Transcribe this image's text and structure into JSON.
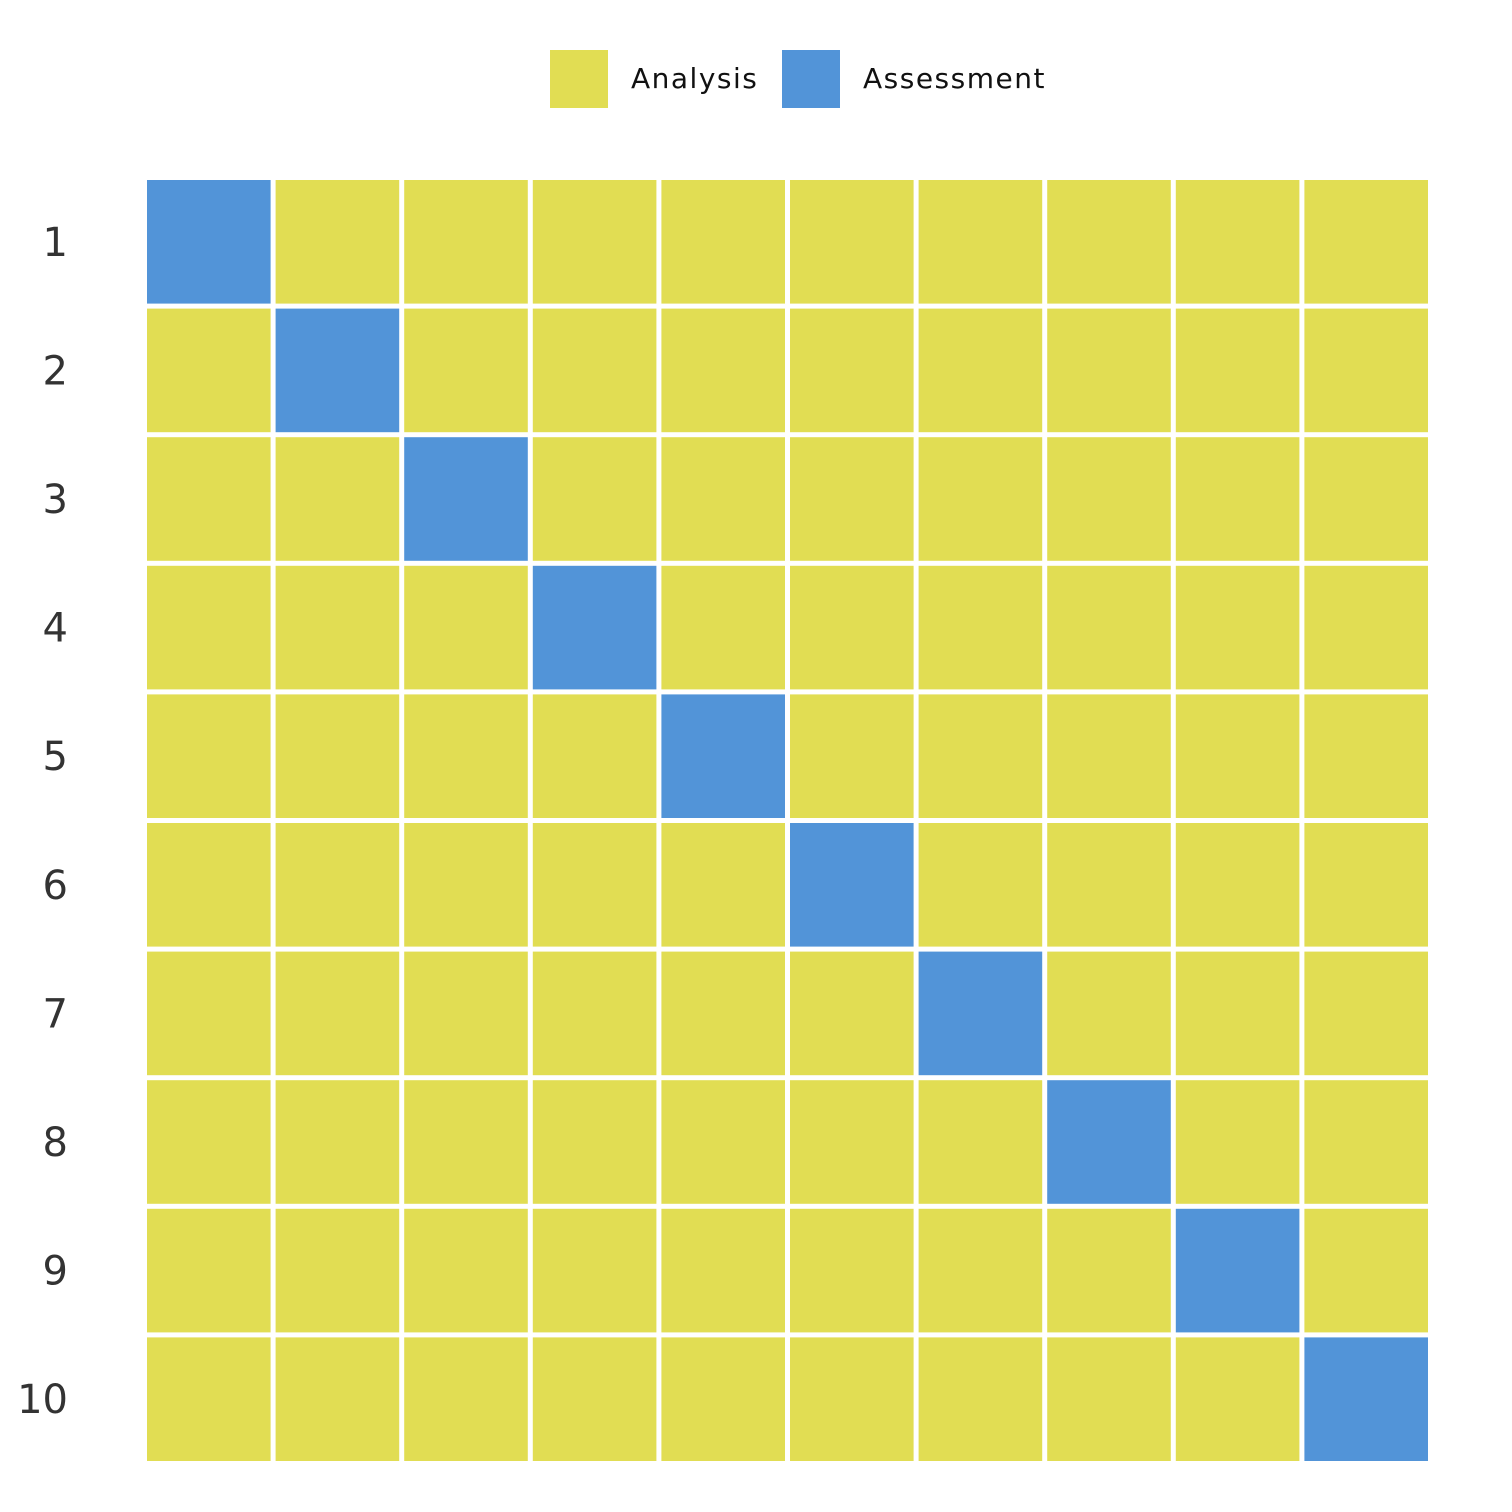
{
  "chart_data": {
    "type": "heatmap",
    "title": "",
    "xlabel": "",
    "ylabel": "",
    "rows": [
      "1",
      "2",
      "3",
      "4",
      "5",
      "6",
      "7",
      "8",
      "9",
      "10"
    ],
    "column_count": 10,
    "categories": [
      "Analysis",
      "Assessment"
    ],
    "colors": {
      "Analysis": "#e1dd53",
      "Assessment": "#5294d8"
    },
    "legend": {
      "position": "top-center",
      "items": [
        {
          "label": "Analysis",
          "color": "#e1dd53"
        },
        {
          "label": "Assessment",
          "color": "#5294d8"
        }
      ]
    },
    "cells": [
      [
        "Assessment",
        "Analysis",
        "Analysis",
        "Analysis",
        "Analysis",
        "Analysis",
        "Analysis",
        "Analysis",
        "Analysis",
        "Analysis"
      ],
      [
        "Analysis",
        "Assessment",
        "Analysis",
        "Analysis",
        "Analysis",
        "Analysis",
        "Analysis",
        "Analysis",
        "Analysis",
        "Analysis"
      ],
      [
        "Analysis",
        "Analysis",
        "Assessment",
        "Analysis",
        "Analysis",
        "Analysis",
        "Analysis",
        "Analysis",
        "Analysis",
        "Analysis"
      ],
      [
        "Analysis",
        "Analysis",
        "Analysis",
        "Assessment",
        "Analysis",
        "Analysis",
        "Analysis",
        "Analysis",
        "Analysis",
        "Analysis"
      ],
      [
        "Analysis",
        "Analysis",
        "Analysis",
        "Analysis",
        "Assessment",
        "Analysis",
        "Analysis",
        "Analysis",
        "Analysis",
        "Analysis"
      ],
      [
        "Analysis",
        "Analysis",
        "Analysis",
        "Analysis",
        "Analysis",
        "Assessment",
        "Analysis",
        "Analysis",
        "Analysis",
        "Analysis"
      ],
      [
        "Analysis",
        "Analysis",
        "Analysis",
        "Analysis",
        "Analysis",
        "Analysis",
        "Assessment",
        "Analysis",
        "Analysis",
        "Analysis"
      ],
      [
        "Analysis",
        "Analysis",
        "Analysis",
        "Analysis",
        "Analysis",
        "Analysis",
        "Analysis",
        "Assessment",
        "Analysis",
        "Analysis"
      ],
      [
        "Analysis",
        "Analysis",
        "Analysis",
        "Analysis",
        "Analysis",
        "Analysis",
        "Analysis",
        "Analysis",
        "Assessment",
        "Analysis"
      ],
      [
        "Analysis",
        "Analysis",
        "Analysis",
        "Analysis",
        "Analysis",
        "Analysis",
        "Analysis",
        "Analysis",
        "Analysis",
        "Assessment"
      ]
    ],
    "grid": false
  }
}
